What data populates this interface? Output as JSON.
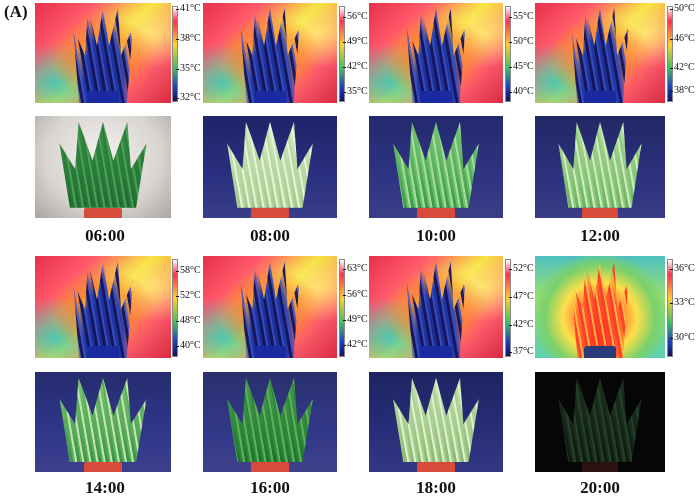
{
  "panel_label": "(A)",
  "colors": {
    "backdrop_blue": "#2a2f7a",
    "backdrop_light": "#e8e6e4",
    "backdrop_dark": "#060606",
    "pot_red": "#d84a3a",
    "leaf_green": "#3a9a48",
    "leaf_pale": "#cfe8b8"
  },
  "rows": [
    {
      "times": [
        {
          "label": "06:00",
          "scale": [
            "41°C",
            "38°C",
            "35°C",
            "32°C"
          ]
        },
        {
          "label": "08:00",
          "scale": [
            "56°C",
            "49°C",
            "42°C",
            "35°C"
          ]
        },
        {
          "label": "10:00",
          "scale": [
            "55°C",
            "50°C",
            "45°C",
            "40°C"
          ]
        },
        {
          "label": "12:00",
          "scale": [
            "50°C",
            "46°C",
            "42°C",
            "38°C"
          ]
        }
      ]
    },
    {
      "times": [
        {
          "label": "14:00",
          "scale": [
            "58°C",
            "52°C",
            "48°C",
            "40°C"
          ]
        },
        {
          "label": "16:00",
          "scale": [
            "63°C",
            "56°C",
            "49°C",
            "42°C"
          ]
        },
        {
          "label": "18:00",
          "scale": [
            "52°C",
            "47°C",
            "42°C",
            "37°C"
          ]
        },
        {
          "label": "20:00",
          "scale": [
            "36°C",
            "33°C",
            "30°C"
          ]
        }
      ]
    }
  ]
}
